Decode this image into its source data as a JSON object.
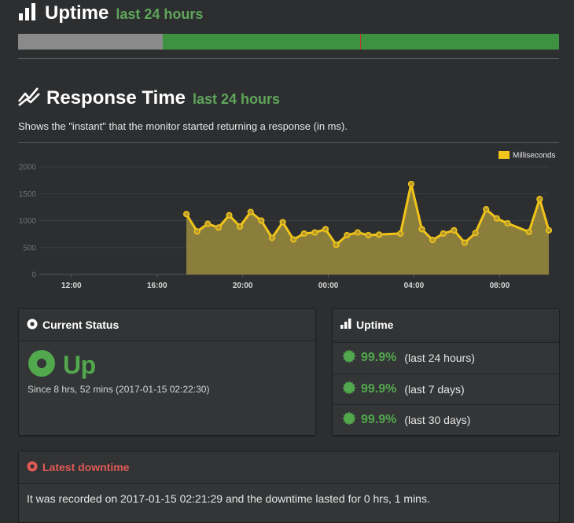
{
  "uptime_section": {
    "title": "Uptime",
    "subtitle": "last 24 hours",
    "bar": [
      {
        "status": "nodata",
        "fraction": 0.267
      },
      {
        "status": "up",
        "fraction": 0.365
      },
      {
        "status": "down",
        "fraction": 0.002
      },
      {
        "status": "up",
        "fraction": 0.366
      }
    ]
  },
  "response_section": {
    "title": "Response Time",
    "subtitle": "last 24 hours",
    "description": "Shows the \"instant\" that the monitor started returning a response (in ms)."
  },
  "chart_data": {
    "type": "area",
    "legend": [
      "Milliseconds"
    ],
    "legend_position": "top-right",
    "ylim": [
      0,
      2000
    ],
    "y_ticks": [
      0,
      500,
      1000,
      1500,
      2000
    ],
    "x_range_hours": [
      10.5,
      34.3
    ],
    "x_ticks": [
      {
        "label": "12:00",
        "hour": 12
      },
      {
        "label": "16:00",
        "hour": 16
      },
      {
        "label": "20:00",
        "hour": 20
      },
      {
        "label": "00:00",
        "hour": 24
      },
      {
        "label": "04:00",
        "hour": 28
      },
      {
        "label": "08:00",
        "hour": 32
      }
    ],
    "series": [
      {
        "name": "Milliseconds",
        "color": "#f0c419",
        "x_hours": [
          17.37,
          17.87,
          18.37,
          18.87,
          19.37,
          19.87,
          20.37,
          20.87,
          21.37,
          21.87,
          22.37,
          22.87,
          23.37,
          23.87,
          24.37,
          24.87,
          25.37,
          25.87,
          26.37,
          27.37,
          27.87,
          28.37,
          28.87,
          29.37,
          29.87,
          30.37,
          30.87,
          31.37,
          31.87,
          32.37,
          33.37,
          33.87,
          34.3
        ],
        "values": [
          1120,
          800,
          940,
          870,
          1100,
          890,
          1160,
          1000,
          680,
          970,
          650,
          760,
          780,
          840,
          550,
          730,
          780,
          730,
          740,
          760,
          1680,
          840,
          640,
          760,
          820,
          590,
          770,
          1210,
          1040,
          950,
          790,
          1400,
          820
        ]
      }
    ]
  },
  "current_status": {
    "title": "Current Status",
    "state": "Up",
    "since": "Since 8 hrs, 52 mins (2017-01-15 02:22:30)"
  },
  "uptime_panel": {
    "title": "Uptime",
    "rows": [
      {
        "pct": "99.9%",
        "period": "(last 24 hours)"
      },
      {
        "pct": "99.9%",
        "period": "(last 7 days)"
      },
      {
        "pct": "99.9%",
        "period": "(last 30 days)"
      }
    ]
  },
  "latest_downtime": {
    "title": "Latest downtime",
    "text": "It was recorded on 2017-01-15 02:21:29 and the downtime lasted for 0 hrs, 1 mins."
  },
  "colors": {
    "green": "#52a84d",
    "bar_up": "#3f9142",
    "bar_nodata": "#8a8a8a",
    "bar_down": "#c9302c",
    "line": "#f0c419",
    "fill": "#9c8b3e",
    "danger": "#e05b55"
  }
}
